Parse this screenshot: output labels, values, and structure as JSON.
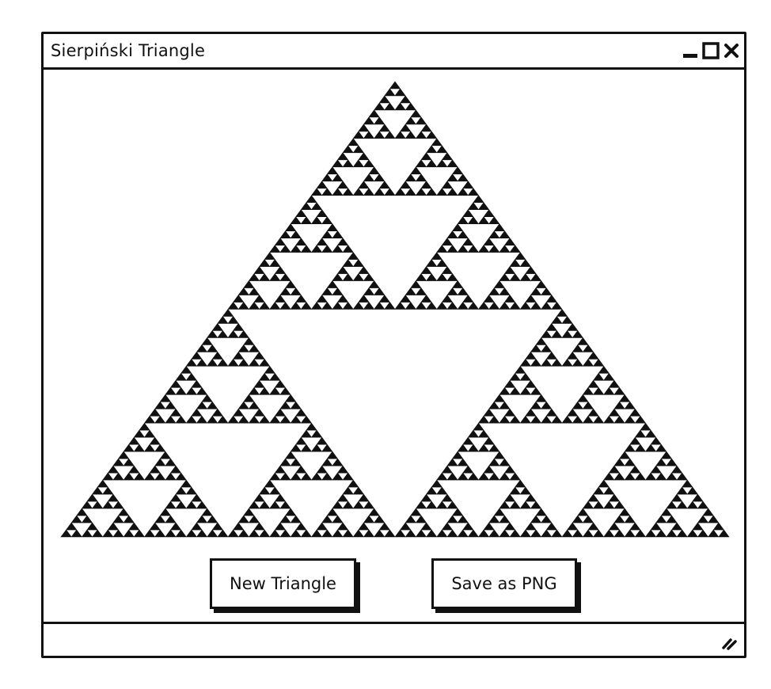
{
  "window": {
    "title": "Sierpiński Triangle",
    "controls": {
      "minimize_icon": "minimize-icon",
      "maximize_icon": "maximize-icon",
      "close_icon": "close-icon"
    }
  },
  "canvas": {
    "fractal": "sierpinski-triangle",
    "fill_color": "#111111",
    "background_color": "#ffffff"
  },
  "buttons": {
    "new_triangle_label": "New Triangle",
    "save_png_label": "Save as PNG"
  },
  "statusbar": {
    "text": "",
    "resize_icon": "resize-grip-icon"
  }
}
